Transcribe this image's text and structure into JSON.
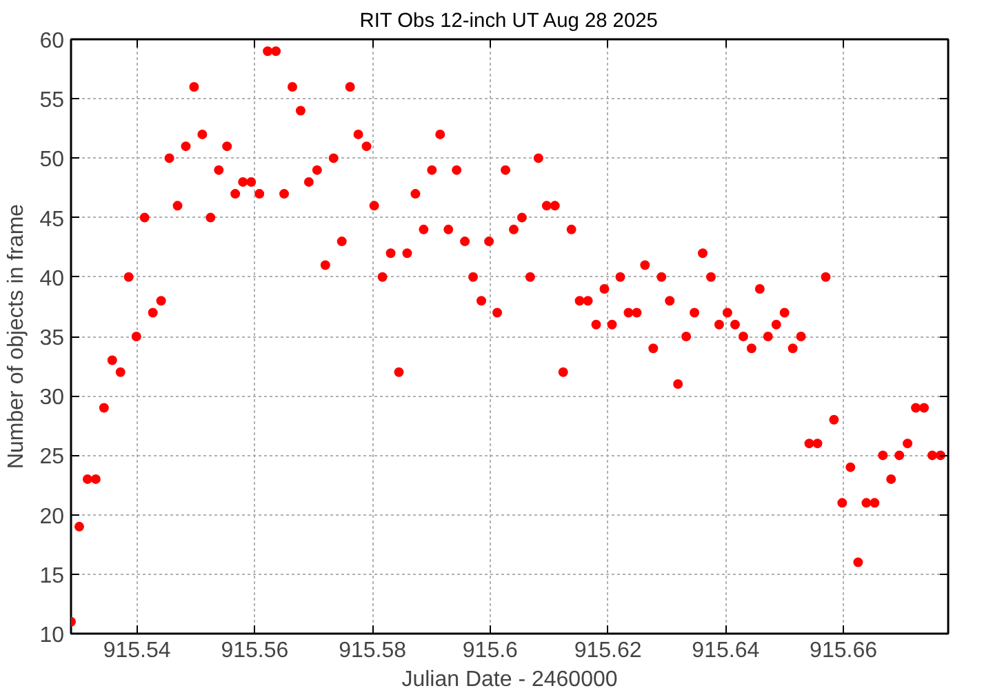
{
  "chart_data": {
    "type": "scatter",
    "title": "RIT Obs 12-inch UT Aug 28 2025",
    "xlabel": "Julian Date - 2460000",
    "ylabel": "Number of objects in frame",
    "x": [
      915.5288,
      915.5302,
      915.5316,
      915.533,
      915.5344,
      915.5358,
      915.5372,
      915.5386,
      915.5399,
      915.5413,
      915.5427,
      915.5441,
      915.5455,
      915.5469,
      915.5483,
      915.5497,
      915.5511,
      915.5525,
      915.5539,
      915.5553,
      915.5567,
      915.558,
      915.5594,
      915.5608,
      915.5622,
      915.5636,
      915.565,
      915.5664,
      915.5678,
      915.5692,
      915.5706,
      915.572,
      915.5734,
      915.5748,
      915.5762,
      915.5776,
      915.579,
      915.5803,
      915.5817,
      915.5831,
      915.5845,
      915.5859,
      915.5873,
      915.5887,
      915.5901,
      915.5915,
      915.5929,
      915.5943,
      915.5957,
      915.5971,
      915.5985,
      915.5998,
      915.6012,
      915.6026,
      915.604,
      915.6054,
      915.6068,
      915.6082,
      915.6096,
      915.611,
      915.6124,
      915.6138,
      915.6152,
      915.6166,
      915.618,
      915.6194,
      915.6207,
      915.6221,
      915.6235,
      915.6249,
      915.6263,
      915.6277,
      915.6291,
      915.6305,
      915.6319,
      915.6333,
      915.6347,
      915.6361,
      915.6375,
      915.6389,
      915.6403,
      915.6416,
      915.643,
      915.6444,
      915.6458,
      915.6472,
      915.6486,
      915.65,
      915.6514,
      915.6528,
      915.6542,
      915.6556,
      915.657,
      915.6584,
      915.6598,
      915.6612,
      915.6625,
      915.6639,
      915.6653,
      915.6667,
      915.6681,
      915.6695,
      915.6709,
      915.6723,
      915.6737,
      915.6751,
      915.6765
    ],
    "series": [
      {
        "color": "#ff0000",
        "values": [
          11,
          19,
          23,
          23,
          29,
          33,
          32,
          40,
          35,
          45,
          37,
          38,
          50,
          46,
          51,
          56,
          52,
          45,
          49,
          51,
          47,
          48,
          48,
          47,
          59,
          59,
          47,
          56,
          54,
          48,
          49,
          41,
          50,
          43,
          56,
          52,
          51,
          46,
          40,
          42,
          32,
          42,
          47,
          44,
          49,
          52,
          44,
          49,
          43,
          40,
          38,
          43,
          37,
          49,
          44,
          45,
          40,
          50,
          46,
          46,
          32,
          44,
          38,
          38,
          36,
          39,
          36,
          40,
          37,
          37,
          41,
          34,
          40,
          38,
          31,
          35,
          37,
          42,
          40,
          36,
          37,
          36,
          35,
          34,
          39,
          35,
          36,
          37,
          34,
          35,
          26,
          26,
          40,
          28,
          21,
          24,
          16,
          21,
          21,
          25,
          23,
          25,
          26,
          29,
          29,
          25,
          25
        ]
      }
    ],
    "xlim": [
      915.5288,
      915.6778
    ],
    "ylim": [
      10,
      60
    ],
    "xticks": [
      915.54,
      915.56,
      915.58,
      915.6,
      915.62,
      915.64,
      915.66
    ],
    "yticks": [
      10,
      15,
      20,
      25,
      30,
      35,
      40,
      45,
      50,
      55,
      60
    ],
    "grid": true,
    "marker": "circle"
  }
}
